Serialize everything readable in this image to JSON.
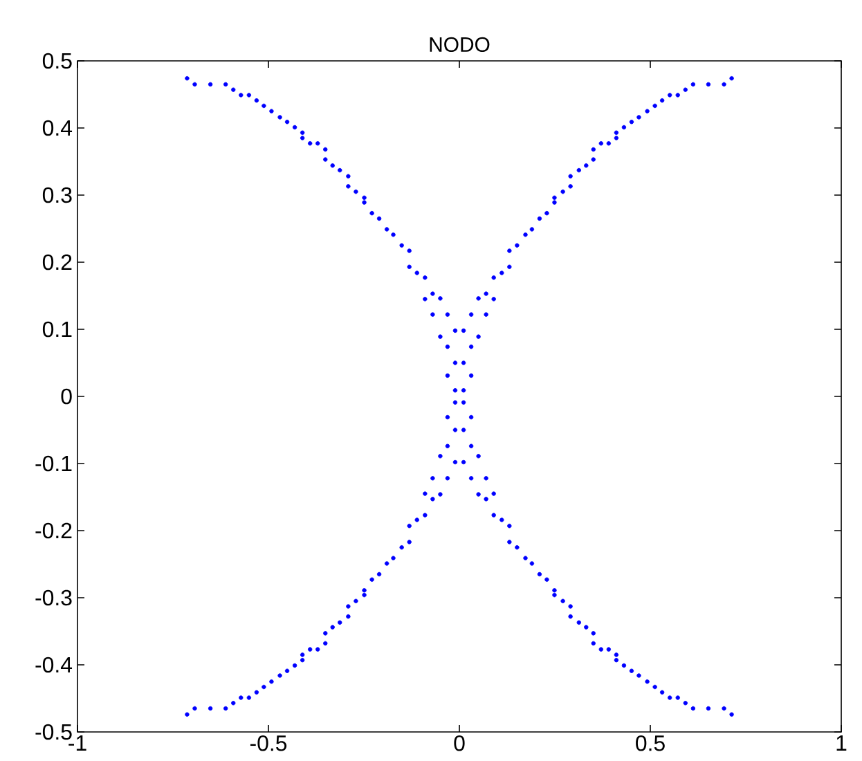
{
  "chart_data": {
    "type": "scatter",
    "title": "NODO",
    "xlim": [
      -1,
      1
    ],
    "ylim": [
      -0.5,
      0.5
    ],
    "xticks": [
      -1,
      -0.5,
      0,
      0.5,
      1
    ],
    "yticks": [
      -0.5,
      -0.4,
      -0.3,
      -0.2,
      -0.1,
      0,
      0.1,
      0.2,
      0.3,
      0.4,
      0.5
    ],
    "grid": false,
    "series": [
      {
        "color": "#0000ff",
        "x": [
          0.713,
          0.693,
          0.652,
          0.612,
          0.592,
          0.572,
          0.551,
          0.531,
          0.512,
          0.492,
          0.47,
          0.451,
          0.431,
          0.411,
          0.411,
          0.391,
          0.371,
          0.351,
          0.351,
          0.332,
          0.313,
          0.291,
          0.291,
          0.271,
          0.249,
          0.249,
          0.229,
          0.21,
          0.19,
          0.173,
          0.151,
          0.131,
          0.131,
          0.111,
          0.09,
          0.09,
          0.07,
          0.07,
          0.05,
          0.05,
          0.031,
          0.031,
          0.031,
          0.011,
          0.011,
          0.011,
          -0.713,
          -0.693,
          -0.652,
          -0.612,
          -0.592,
          -0.572,
          -0.551,
          -0.531,
          -0.512,
          -0.492,
          -0.47,
          -0.451,
          -0.431,
          -0.411,
          -0.411,
          -0.391,
          -0.371,
          -0.351,
          -0.351,
          -0.332,
          -0.313,
          -0.291,
          -0.291,
          -0.271,
          -0.249,
          -0.249,
          -0.229,
          -0.21,
          -0.19,
          -0.173,
          -0.151,
          -0.131,
          -0.131,
          -0.111,
          -0.09,
          -0.09,
          -0.07,
          -0.07,
          -0.05,
          -0.05,
          -0.031,
          -0.031,
          -0.031,
          -0.011,
          -0.011,
          -0.011,
          -0.713,
          -0.693,
          -0.652,
          -0.612,
          -0.592,
          -0.572,
          -0.551,
          -0.531,
          -0.512,
          -0.492,
          -0.47,
          -0.451,
          -0.431,
          -0.411,
          -0.411,
          -0.391,
          -0.371,
          -0.351,
          -0.351,
          -0.332,
          -0.313,
          -0.291,
          -0.291,
          -0.271,
          -0.249,
          -0.249,
          -0.229,
          -0.21,
          -0.19,
          -0.173,
          -0.151,
          -0.131,
          -0.131,
          -0.111,
          -0.09,
          -0.09,
          -0.07,
          -0.07,
          -0.05,
          -0.05,
          -0.031,
          -0.031,
          -0.031,
          -0.011,
          -0.011,
          -0.011,
          0.713,
          0.693,
          0.652,
          0.612,
          0.592,
          0.572,
          0.551,
          0.531,
          0.512,
          0.492,
          0.47,
          0.451,
          0.431,
          0.411,
          0.411,
          0.391,
          0.371,
          0.351,
          0.351,
          0.332,
          0.313,
          0.291,
          0.291,
          0.271,
          0.249,
          0.249,
          0.229,
          0.21,
          0.19,
          0.173,
          0.151,
          0.131,
          0.131,
          0.111,
          0.09,
          0.09,
          0.07,
          0.07,
          0.05,
          0.05,
          0.031,
          0.031,
          0.031,
          0.011,
          0.011,
          0.011
        ],
        "values": [
          0.474,
          0.465,
          0.465,
          0.465,
          0.457,
          0.449,
          0.449,
          0.441,
          0.433,
          0.425,
          0.416,
          0.409,
          0.401,
          0.393,
          0.385,
          0.377,
          0.377,
          0.368,
          0.353,
          0.344,
          0.337,
          0.328,
          0.313,
          0.305,
          0.296,
          0.289,
          0.273,
          0.265,
          0.249,
          0.241,
          0.225,
          0.217,
          0.193,
          0.184,
          0.177,
          0.145,
          0.153,
          0.122,
          0.146,
          0.089,
          0.122,
          0.074,
          0.031,
          0.098,
          0.05,
          0.009,
          0.474,
          0.465,
          0.465,
          0.465,
          0.457,
          0.449,
          0.449,
          0.441,
          0.433,
          0.425,
          0.416,
          0.409,
          0.401,
          0.393,
          0.385,
          0.377,
          0.377,
          0.368,
          0.353,
          0.344,
          0.337,
          0.328,
          0.313,
          0.305,
          0.296,
          0.289,
          0.273,
          0.265,
          0.249,
          0.241,
          0.225,
          0.217,
          0.193,
          0.184,
          0.177,
          0.145,
          0.153,
          0.122,
          0.146,
          0.089,
          0.122,
          0.074,
          0.031,
          0.098,
          0.05,
          0.009,
          -0.474,
          -0.465,
          -0.465,
          -0.465,
          -0.457,
          -0.449,
          -0.449,
          -0.441,
          -0.433,
          -0.425,
          -0.416,
          -0.409,
          -0.401,
          -0.393,
          -0.385,
          -0.377,
          -0.377,
          -0.368,
          -0.353,
          -0.344,
          -0.337,
          -0.328,
          -0.313,
          -0.305,
          -0.296,
          -0.289,
          -0.273,
          -0.265,
          -0.249,
          -0.241,
          -0.225,
          -0.217,
          -0.193,
          -0.184,
          -0.177,
          -0.145,
          -0.153,
          -0.122,
          -0.146,
          -0.089,
          -0.122,
          -0.074,
          -0.031,
          -0.098,
          -0.05,
          -0.009,
          -0.474,
          -0.465,
          -0.465,
          -0.465,
          -0.457,
          -0.449,
          -0.449,
          -0.441,
          -0.433,
          -0.425,
          -0.416,
          -0.409,
          -0.401,
          -0.393,
          -0.385,
          -0.377,
          -0.377,
          -0.368,
          -0.353,
          -0.344,
          -0.337,
          -0.328,
          -0.313,
          -0.305,
          -0.296,
          -0.289,
          -0.273,
          -0.265,
          -0.249,
          -0.241,
          -0.225,
          -0.217,
          -0.193,
          -0.184,
          -0.177,
          -0.145,
          -0.153,
          -0.122,
          -0.146,
          -0.089,
          -0.122,
          -0.074,
          -0.031,
          -0.098,
          -0.05,
          -0.009
        ]
      }
    ]
  }
}
